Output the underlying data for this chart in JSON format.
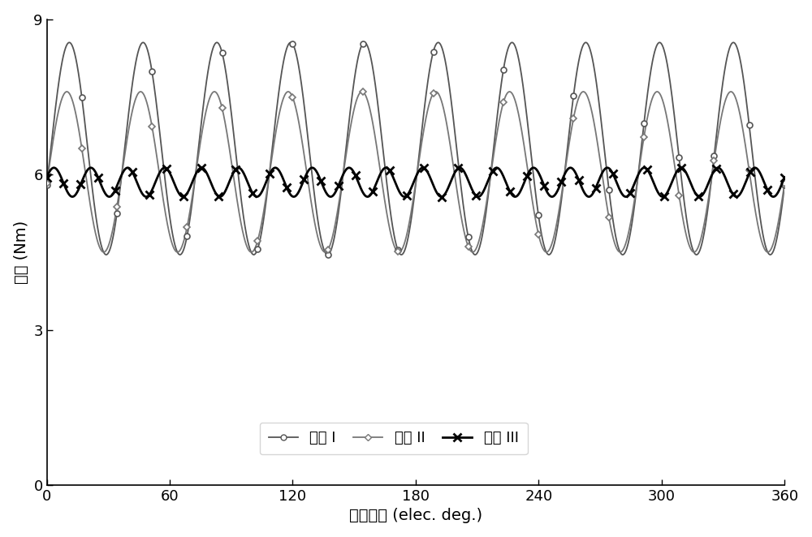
{
  "xlabel": "转子位置 (elec. deg.)",
  "ylabel": "转矩 (Nm)",
  "xlim": [
    0,
    360
  ],
  "ylim": [
    0,
    9
  ],
  "xticks": [
    0,
    60,
    120,
    180,
    240,
    300,
    360
  ],
  "yticks": [
    0,
    3,
    6,
    9
  ],
  "legend_labels": [
    "转子 I",
    "转子 II",
    "转子 III"
  ],
  "color_I": "#555555",
  "color_II": "#777777",
  "color_III": "#000000",
  "n_cycles_I": 10,
  "n_cycles_II": 10,
  "n_cycles_III": 20,
  "mean_I": 6.5,
  "amp_I": 2.05,
  "mean_II": 6.05,
  "amp_II": 1.55,
  "mean_III": 5.85,
  "amp_III": 0.28,
  "phase_I_deg": -20,
  "phase_II_deg": -8,
  "phase_III_deg": 20,
  "skew_I": 0.5,
  "skew_II": 0.5,
  "marker_size_I": 5,
  "marker_size_II": 5,
  "marker_size_III": 7,
  "linewidth_I": 1.3,
  "linewidth_II": 1.3,
  "linewidth_III": 2.0,
  "n_markers_I": 22,
  "n_markers_II": 22,
  "n_markers_III": 44,
  "figsize": [
    10.0,
    6.62
  ],
  "dpi": 100
}
